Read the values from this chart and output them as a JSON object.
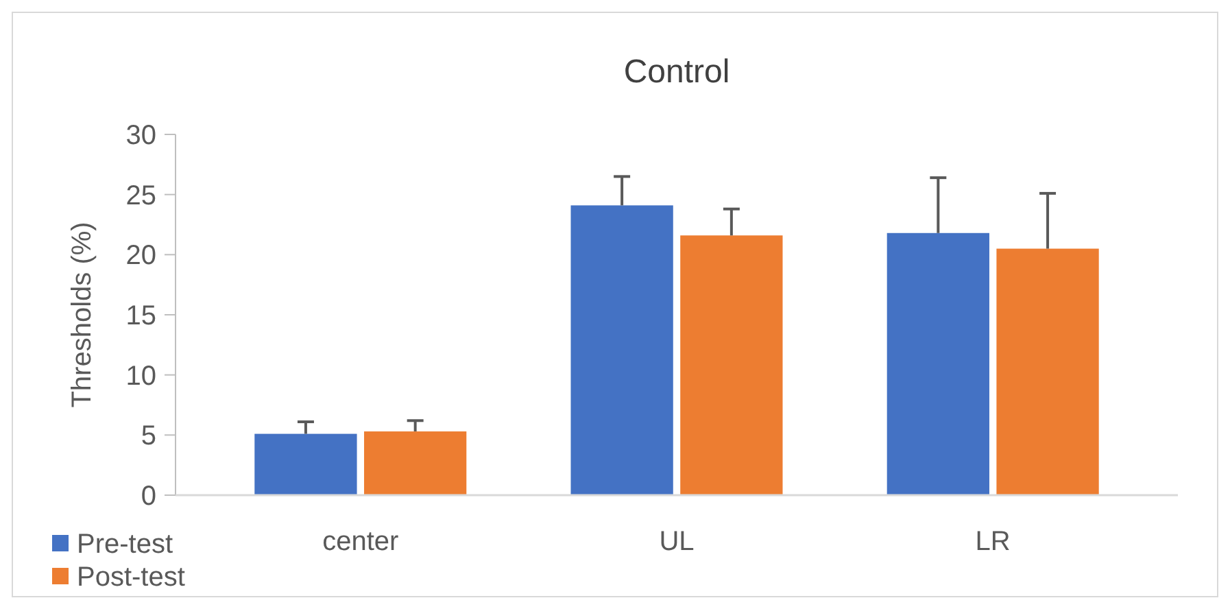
{
  "chart_data": {
    "type": "bar",
    "title": "Control",
    "ylabel": "Thresholds (%)",
    "categories": [
      "center",
      "UL",
      "LR"
    ],
    "series": [
      {
        "name": "Pre-test",
        "color": "#4472c4",
        "values": [
          5.1,
          24.1,
          21.8
        ],
        "errors": [
          [
            5.1,
            6.1
          ],
          [
            24.1,
            26.5
          ],
          [
            21.8,
            26.4
          ]
        ]
      },
      {
        "name": "Post-test",
        "color": "#ed7d31",
        "values": [
          5.3,
          21.6,
          20.5
        ],
        "errors": [
          [
            5.3,
            6.2
          ],
          [
            21.6,
            23.8
          ],
          [
            20.5,
            25.1
          ]
        ]
      }
    ],
    "ylim": [
      0,
      30
    ],
    "yticks": [
      0,
      5,
      10,
      15,
      20,
      25,
      30
    ],
    "grid": false,
    "legend": "bottom left"
  }
}
